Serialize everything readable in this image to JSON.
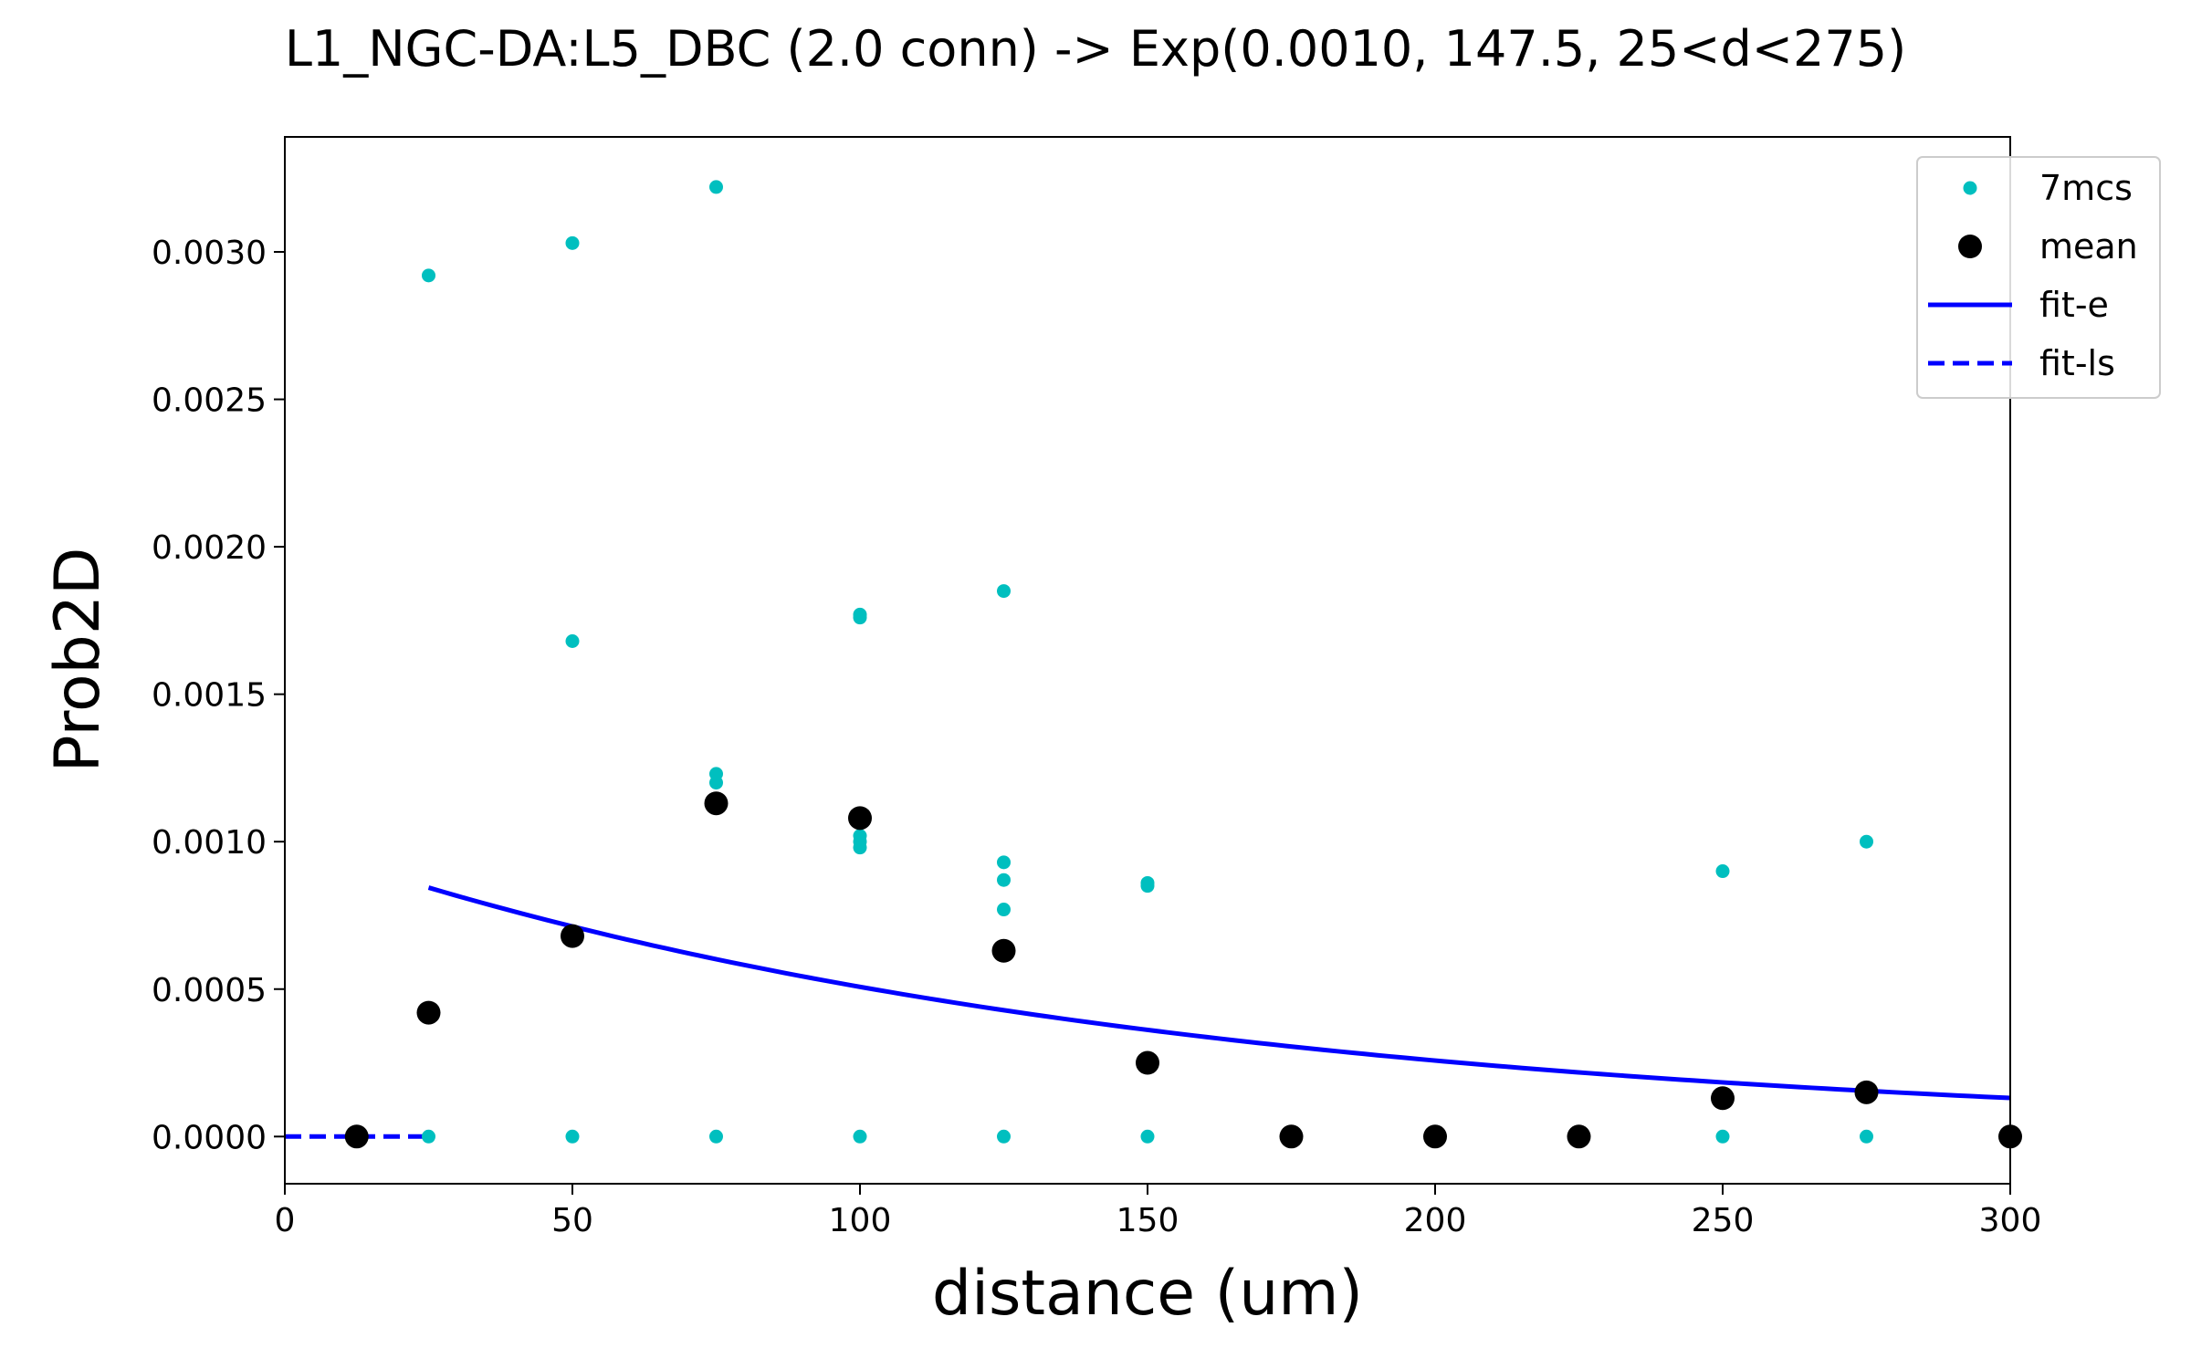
{
  "chart_data": {
    "type": "scatter",
    "title": "L1_NGC-DA:L5_DBC (2.0 conn) -> Exp(0.0010, 147.5, 25<d<275)",
    "xlabel": "distance (um)",
    "ylabel": "Prob2D",
    "xlim": [
      0,
      300
    ],
    "ylim": [
      -0.00016,
      0.00339
    ],
    "xticks": [
      0,
      50,
      100,
      150,
      200,
      250,
      300
    ],
    "xtick_labels": [
      "0",
      "50",
      "100",
      "150",
      "200",
      "250",
      "300"
    ],
    "yticks": [
      0.0,
      0.0005,
      0.001,
      0.0015,
      0.002,
      0.0025,
      0.003
    ],
    "ytick_labels": [
      "0.0000",
      "0.0005",
      "0.0010",
      "0.0015",
      "0.0020",
      "0.0025",
      "0.0030"
    ],
    "grid": false,
    "legend_position": "top-right",
    "legend": [
      "7mcs",
      "mean",
      "fit-e",
      "fit-ls"
    ],
    "series": [
      {
        "name": "7mcs",
        "kind": "points",
        "color": "#00bfbf",
        "points": [
          [
            25,
            0.0
          ],
          [
            25,
            0.00292
          ],
          [
            50,
            0.0
          ],
          [
            50,
            0.00168
          ],
          [
            50,
            0.00303
          ],
          [
            75,
            0.0
          ],
          [
            75,
            0.0012
          ],
          [
            75,
            0.00123
          ],
          [
            75,
            0.00322
          ],
          [
            100,
            0.0
          ],
          [
            100,
            0.00098
          ],
          [
            100,
            0.001
          ],
          [
            100,
            0.00102
          ],
          [
            100,
            0.00176
          ],
          [
            100,
            0.00177
          ],
          [
            125,
            0.0
          ],
          [
            125,
            0.00077
          ],
          [
            125,
            0.00087
          ],
          [
            125,
            0.00093
          ],
          [
            125,
            0.00185
          ],
          [
            150,
            0.0
          ],
          [
            150,
            0.00085
          ],
          [
            150,
            0.00086
          ],
          [
            250,
            0.0
          ],
          [
            250,
            0.0009
          ],
          [
            275,
            0.0
          ],
          [
            275,
            0.001
          ]
        ]
      },
      {
        "name": "mean",
        "kind": "points",
        "color": "#000000",
        "points": [
          [
            12.5,
            0.0
          ],
          [
            25,
            0.00042
          ],
          [
            50,
            0.00068
          ],
          [
            75,
            0.00113
          ],
          [
            100,
            0.00108
          ],
          [
            125,
            0.00063
          ],
          [
            150,
            0.00025
          ],
          [
            175,
            0.0
          ],
          [
            200,
            0.0
          ],
          [
            225,
            0.0
          ],
          [
            250,
            0.00013
          ],
          [
            275,
            0.00015
          ],
          [
            300,
            0.0
          ]
        ]
      },
      {
        "name": "fit-e",
        "kind": "exp-line",
        "color": "#0000ff",
        "amplitude": 0.001,
        "length": 147.5,
        "x_range": [
          25,
          300
        ]
      },
      {
        "name": "fit-ls",
        "kind": "dashed-line",
        "color": "#0000ff",
        "points": [
          [
            0,
            0.0
          ],
          [
            25,
            0.0
          ]
        ]
      }
    ]
  }
}
